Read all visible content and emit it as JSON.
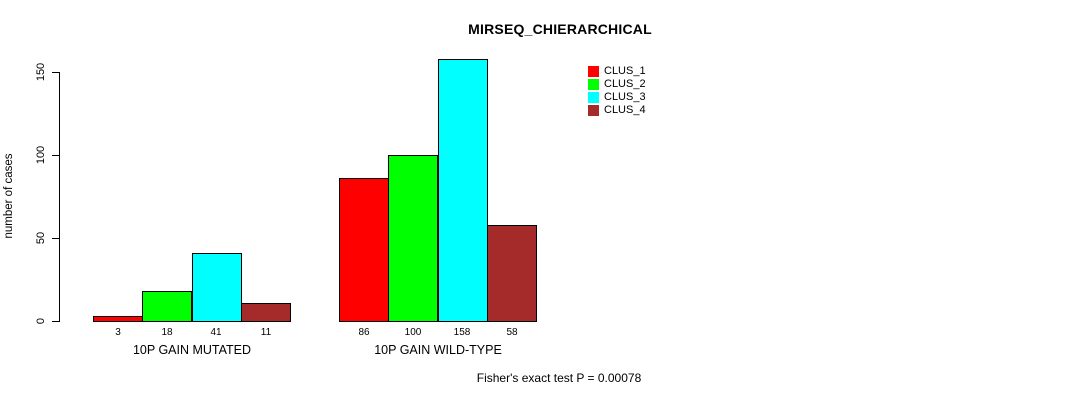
{
  "chart_data": {
    "type": "bar",
    "title": "MIRSEQ_CHIERARCHICAL",
    "ylabel": "number of cases",
    "xlabel": "",
    "ylim": [
      0,
      150
    ],
    "yticks": [
      0,
      50,
      100,
      150
    ],
    "grid": false,
    "legend_position": "top-right",
    "categories": [
      "10P GAIN MUTATED",
      "10P GAIN WILD-TYPE"
    ],
    "series": [
      {
        "name": "CLUS_1",
        "color": "#FF0000",
        "values": [
          3,
          86
        ]
      },
      {
        "name": "CLUS_2",
        "color": "#00FF00",
        "values": [
          18,
          100
        ]
      },
      {
        "name": "CLUS_3",
        "color": "#00FFFF",
        "values": [
          41,
          158
        ]
      },
      {
        "name": "CLUS_4",
        "color": "#A52A2A",
        "values": [
          11,
          58
        ]
      }
    ],
    "bar_value_labels": [
      [
        3,
        18,
        41,
        11
      ],
      [
        86,
        100,
        158,
        58
      ]
    ],
    "annotation": "Fisher's exact test P = 0.00078"
  }
}
